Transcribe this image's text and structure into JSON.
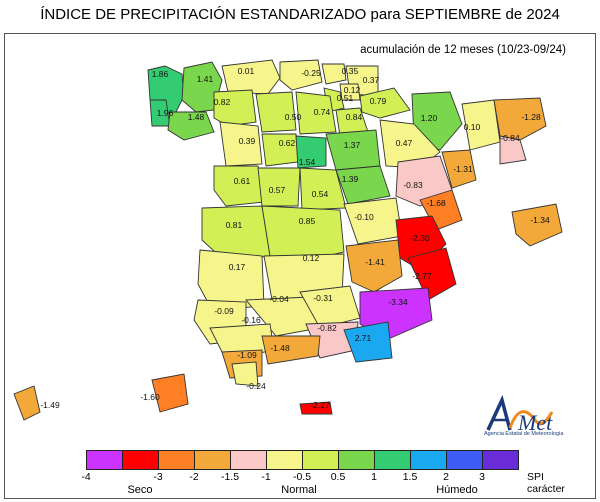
{
  "header": {
    "title": "ÍNDICE DE PRECIPITACIÓN ESTANDARIZADO para SEPTIEMBRE de 2024",
    "subtitle": "acumulación de 12 meses (10/23-09/24)"
  },
  "logo": {
    "name": "AEMet",
    "subtext": "Agencia Estatal de Meteorología"
  },
  "legend": {
    "ticks": [
      "-4",
      "-3",
      "-2",
      "-1.5",
      "-1",
      "-0.5",
      "0.5",
      "1",
      "1.5",
      "2",
      "3"
    ],
    "classes": [
      {
        "from": -4,
        "to": -3,
        "color": "#cc33ff"
      },
      {
        "from": -3,
        "to": -2,
        "color": "#ff0000"
      },
      {
        "from": -2,
        "to": -1.5,
        "color": "#ff7f24"
      },
      {
        "from": -1.5,
        "to": -1,
        "color": "#f3a93a"
      },
      {
        "from": -1,
        "to": -0.5,
        "color": "#fbc8c8"
      },
      {
        "from": -0.5,
        "to": 0.5,
        "color": "#f5f58c"
      },
      {
        "from": 0.5,
        "to": 1,
        "color": "#d2f055"
      },
      {
        "from": 1,
        "to": 1.5,
        "color": "#7ad64d"
      },
      {
        "from": 1.5,
        "to": 2,
        "color": "#33cc73"
      },
      {
        "from": 2,
        "to": 3,
        "color": "#1aa8f0"
      },
      {
        "from": 3,
        "to": 4,
        "color": "#3d5cf5"
      },
      {
        "from": 4,
        "to": 5,
        "color": "#6a2bd9"
      }
    ],
    "categories": [
      "Seco",
      "Normal",
      "Húmedo"
    ],
    "unit_line1": "SPI",
    "unit_line2": "carácter"
  },
  "map_values": [
    "1.86",
    "1.41",
    "0.01",
    "-0.25",
    "0.35",
    "0.37",
    "0.12",
    "0.79",
    "0.51",
    "1.96",
    "1.48",
    "0.82",
    "0.50",
    "0.74",
    "0.84",
    "1.20",
    "0.10",
    "-1.28",
    "0.39",
    "0.62",
    "1.54",
    "1.37",
    "0.47",
    "-0.84",
    "0.61",
    "0.57",
    "0.54",
    "1.39",
    "-0.83",
    "-1.31",
    "-1.68",
    "0.81",
    "0.85",
    "-0.10",
    "-2.30",
    "-1.34",
    "0.17",
    "0.12",
    "-1.41",
    "-2.77",
    "-0.09",
    "-0.04",
    "-0.31",
    "-3.34",
    "-0.16",
    "-0.82",
    "2.71",
    "-1.09",
    "-1.48",
    "-0.24",
    "-1.49",
    "-1.60",
    "-2.27"
  ]
}
